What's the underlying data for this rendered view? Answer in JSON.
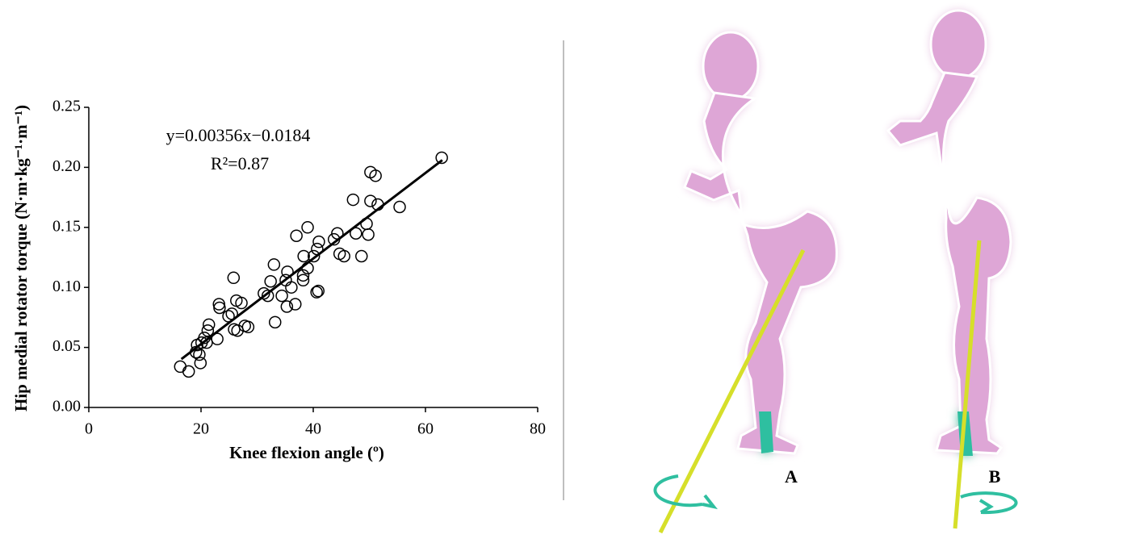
{
  "chart_data": {
    "type": "scatter",
    "x_label": "Knee flexion angle (º)",
    "y_label": "Hip medial rotator torque (N·m·kg⁻¹·m⁻¹)",
    "annotations": [
      "y=0.00356x−0.0184",
      "R²=0.87"
    ],
    "x": [
      62.9,
      50.2,
      51.1,
      47.1,
      50.2,
      51.5,
      55.4,
      39.0,
      37.0,
      49.5,
      49.8,
      47.6,
      44.3,
      43.7,
      41.0,
      40.7,
      40.1,
      38.3,
      45.5,
      44.7,
      48.6,
      33.0,
      25.8,
      35.4,
      39.0,
      32.4,
      35.1,
      38.2,
      38.2,
      36.1,
      40.9,
      40.6,
      31.2,
      31.9,
      34.4,
      36.8,
      35.3,
      23.2,
      23.3,
      26.3,
      27.2,
      25.5,
      24.9,
      33.2,
      21.4,
      27.8,
      28.4,
      25.9,
      26.5,
      21.2,
      20.6,
      20.1,
      21.0,
      22.9,
      19.3,
      19.1,
      19.7,
      19.9,
      16.3,
      17.8
    ],
    "values": [
      0.208,
      0.196,
      0.193,
      0.173,
      0.172,
      0.169,
      0.167,
      0.15,
      0.143,
      0.153,
      0.144,
      0.145,
      0.145,
      0.14,
      0.138,
      0.132,
      0.126,
      0.126,
      0.126,
      0.128,
      0.126,
      0.119,
      0.108,
      0.113,
      0.116,
      0.105,
      0.106,
      0.11,
      0.106,
      0.1,
      0.097,
      0.096,
      0.095,
      0.093,
      0.093,
      0.086,
      0.084,
      0.086,
      0.083,
      0.089,
      0.087,
      0.078,
      0.076,
      0.071,
      0.069,
      0.068,
      0.067,
      0.065,
      0.064,
      0.064,
      0.058,
      0.054,
      0.054,
      0.057,
      0.052,
      0.046,
      0.044,
      0.037,
      0.034,
      0.03
    ],
    "color": "#000000",
    "fit": {
      "x": [
        16.5,
        63
      ],
      "values": [
        0.0403,
        0.206
      ]
    },
    "xlim": [
      0,
      80
    ],
    "xticks": [
      0,
      20,
      40,
      60,
      80
    ],
    "ylim": [
      0,
      0.25
    ],
    "yticks": [
      {
        "value": 0,
        "label": "0.00"
      },
      0.05,
      {
        "value": 0.1,
        "label": "0.10"
      },
      0.15,
      {
        "value": 0.2,
        "label": "0.20"
      },
      0.25
    ]
  },
  "illustration": {
    "labels": [
      "A",
      "B"
    ]
  }
}
